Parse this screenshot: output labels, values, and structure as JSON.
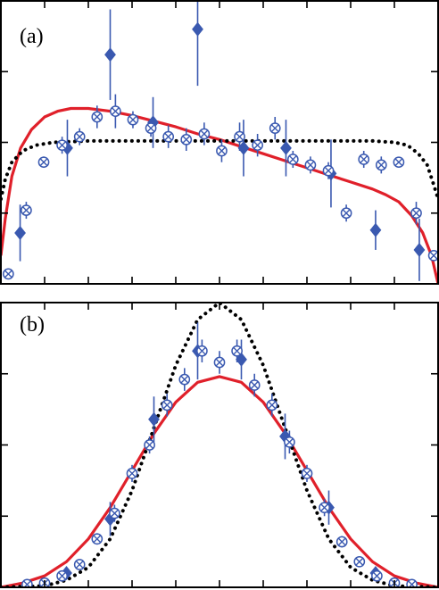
{
  "colors": {
    "frame": "#000000",
    "fit_curve": "#e0202a",
    "dotted_curve": "#000000",
    "diamond": "#3a59b0",
    "cross_circle": "#3a59b0",
    "errorbar": "#3a59b0"
  },
  "chart_data": [
    {
      "type": "scatter",
      "panel_label": "(a)",
      "xlim": [
        0,
        1
      ],
      "ylim": [
        0,
        1
      ],
      "grid": false,
      "legend": "none",
      "tick_labels": "none",
      "series": [
        {
          "marker": "diamond",
          "points": [
            {
              "x": 0.044,
              "y": 0.18,
              "err": 0.1
            },
            {
              "x": 0.152,
              "y": 0.48,
              "err": 0.1
            },
            {
              "x": 0.25,
              "y": 0.81,
              "err": 0.16
            },
            {
              "x": 0.348,
              "y": 0.57,
              "err": 0.09
            },
            {
              "x": 0.45,
              "y": 0.9,
              "err": 0.2
            },
            {
              "x": 0.555,
              "y": 0.48,
              "err": 0.1
            },
            {
              "x": 0.652,
              "y": 0.48,
              "err": 0.1
            },
            {
              "x": 0.755,
              "y": 0.39,
              "err": 0.12
            },
            {
              "x": 0.857,
              "y": 0.19,
              "err": 0.07
            },
            {
              "x": 0.957,
              "y": 0.12,
              "err": 0.11
            }
          ]
        },
        {
          "marker": "cross-circle",
          "points": [
            {
              "x": 0.017,
              "y": 0.035,
              "err": 0.0
            },
            {
              "x": 0.058,
              "y": 0.26,
              "err": 0.03
            },
            {
              "x": 0.098,
              "y": 0.43,
              "err": 0.02
            },
            {
              "x": 0.14,
              "y": 0.49,
              "err": 0.03
            },
            {
              "x": 0.18,
              "y": 0.52,
              "err": 0.03
            },
            {
              "x": 0.22,
              "y": 0.59,
              "err": 0.04
            },
            {
              "x": 0.262,
              "y": 0.61,
              "err": 0.06
            },
            {
              "x": 0.302,
              "y": 0.58,
              "err": 0.03
            },
            {
              "x": 0.343,
              "y": 0.55,
              "err": 0.03
            },
            {
              "x": 0.383,
              "y": 0.52,
              "err": 0.04
            },
            {
              "x": 0.424,
              "y": 0.51,
              "err": 0.04
            },
            {
              "x": 0.465,
              "y": 0.53,
              "err": 0.04
            },
            {
              "x": 0.505,
              "y": 0.47,
              "err": 0.04
            },
            {
              "x": 0.546,
              "y": 0.52,
              "err": 0.05
            },
            {
              "x": 0.587,
              "y": 0.49,
              "err": 0.04
            },
            {
              "x": 0.627,
              "y": 0.55,
              "err": 0.04
            },
            {
              "x": 0.668,
              "y": 0.44,
              "err": 0.03
            },
            {
              "x": 0.708,
              "y": 0.42,
              "err": 0.03
            },
            {
              "x": 0.749,
              "y": 0.4,
              "err": 0.03
            },
            {
              "x": 0.79,
              "y": 0.25,
              "err": 0.03
            },
            {
              "x": 0.83,
              "y": 0.44,
              "err": 0.03
            },
            {
              "x": 0.87,
              "y": 0.42,
              "err": 0.03
            },
            {
              "x": 0.91,
              "y": 0.43,
              "err": 0.0
            },
            {
              "x": 0.95,
              "y": 0.25,
              "err": 0.04
            },
            {
              "x": 0.99,
              "y": 0.1,
              "err": 0.0
            }
          ]
        }
      ],
      "curves": [
        {
          "style": "solid",
          "points": [
            [
              0.0,
              0.1
            ],
            [
              0.01,
              0.23
            ],
            [
              0.025,
              0.38
            ],
            [
              0.045,
              0.48
            ],
            [
              0.07,
              0.545
            ],
            [
              0.1,
              0.59
            ],
            [
              0.13,
              0.61
            ],
            [
              0.16,
              0.62
            ],
            [
              0.2,
              0.62
            ],
            [
              0.25,
              0.61
            ],
            [
              0.3,
              0.595
            ],
            [
              0.35,
              0.575
            ],
            [
              0.4,
              0.555
            ],
            [
              0.45,
              0.53
            ],
            [
              0.5,
              0.51
            ],
            [
              0.55,
              0.485
            ],
            [
              0.6,
              0.46
            ],
            [
              0.65,
              0.435
            ],
            [
              0.7,
              0.41
            ],
            [
              0.75,
              0.385
            ],
            [
              0.8,
              0.36
            ],
            [
              0.85,
              0.335
            ],
            [
              0.88,
              0.315
            ],
            [
              0.91,
              0.29
            ],
            [
              0.94,
              0.24
            ],
            [
              0.965,
              0.18
            ],
            [
              0.985,
              0.1
            ],
            [
              1.0,
              0.0
            ]
          ]
        },
        {
          "style": "dotted",
          "points": [
            [
              0.0,
              0.3
            ],
            [
              0.01,
              0.37
            ],
            [
              0.025,
              0.43
            ],
            [
              0.05,
              0.47
            ],
            [
              0.08,
              0.49
            ],
            [
              0.12,
              0.5
            ],
            [
              0.2,
              0.505
            ],
            [
              0.3,
              0.505
            ],
            [
              0.5,
              0.505
            ],
            [
              0.7,
              0.505
            ],
            [
              0.85,
              0.505
            ],
            [
              0.9,
              0.5
            ],
            [
              0.93,
              0.49
            ],
            [
              0.955,
              0.46
            ],
            [
              0.975,
              0.42
            ],
            [
              0.99,
              0.35
            ],
            [
              1.0,
              0.3
            ]
          ]
        }
      ]
    },
    {
      "type": "scatter",
      "panel_label": "(b)",
      "xlim": [
        0,
        1
      ],
      "ylim": [
        0,
        1
      ],
      "grid": false,
      "legend": "none",
      "tick_labels": "none",
      "series": [
        {
          "marker": "diamond",
          "points": [
            {
              "x": 0.15,
              "y": 0.05,
              "err": 0.02
            },
            {
              "x": 0.25,
              "y": 0.24,
              "err": 0.06
            },
            {
              "x": 0.35,
              "y": 0.59,
              "err": 0.08
            },
            {
              "x": 0.45,
              "y": 0.83,
              "err": 0.1
            },
            {
              "x": 0.55,
              "y": 0.8,
              "err": 0.07
            },
            {
              "x": 0.65,
              "y": 0.53,
              "err": 0.08
            },
            {
              "x": 0.75,
              "y": 0.28,
              "err": 0.06
            },
            {
              "x": 0.857,
              "y": 0.05,
              "err": 0.02
            }
          ]
        },
        {
          "marker": "cross-circle",
          "points": [
            {
              "x": 0.06,
              "y": 0.01,
              "err": 0.0
            },
            {
              "x": 0.1,
              "y": 0.015,
              "err": 0.0
            },
            {
              "x": 0.14,
              "y": 0.04,
              "err": 0.0
            },
            {
              "x": 0.18,
              "y": 0.08,
              "err": 0.0
            },
            {
              "x": 0.22,
              "y": 0.17,
              "err": 0.02
            },
            {
              "x": 0.26,
              "y": 0.26,
              "err": 0.03
            },
            {
              "x": 0.3,
              "y": 0.4,
              "err": 0.03
            },
            {
              "x": 0.34,
              "y": 0.5,
              "err": 0.03
            },
            {
              "x": 0.38,
              "y": 0.64,
              "err": 0.04
            },
            {
              "x": 0.42,
              "y": 0.73,
              "err": 0.04
            },
            {
              "x": 0.46,
              "y": 0.83,
              "err": 0.04
            },
            {
              "x": 0.5,
              "y": 0.79,
              "err": 0.04
            },
            {
              "x": 0.54,
              "y": 0.83,
              "err": 0.04
            },
            {
              "x": 0.58,
              "y": 0.71,
              "err": 0.04
            },
            {
              "x": 0.62,
              "y": 0.64,
              "err": 0.04
            },
            {
              "x": 0.66,
              "y": 0.51,
              "err": 0.04
            },
            {
              "x": 0.7,
              "y": 0.4,
              "err": 0.03
            },
            {
              "x": 0.74,
              "y": 0.28,
              "err": 0.03
            },
            {
              "x": 0.78,
              "y": 0.16,
              "err": 0.02
            },
            {
              "x": 0.82,
              "y": 0.09,
              "err": 0.0
            },
            {
              "x": 0.86,
              "y": 0.04,
              "err": 0.0
            },
            {
              "x": 0.9,
              "y": 0.015,
              "err": 0.0
            },
            {
              "x": 0.94,
              "y": 0.01,
              "err": 0.0
            }
          ]
        }
      ],
      "curves": [
        {
          "style": "solid",
          "points": [
            [
              0.0,
              0.0
            ],
            [
              0.05,
              0.015
            ],
            [
              0.1,
              0.04
            ],
            [
              0.15,
              0.09
            ],
            [
              0.2,
              0.17
            ],
            [
              0.25,
              0.28
            ],
            [
              0.3,
              0.41
            ],
            [
              0.35,
              0.54
            ],
            [
              0.4,
              0.65
            ],
            [
              0.45,
              0.72
            ],
            [
              0.5,
              0.74
            ],
            [
              0.55,
              0.72
            ],
            [
              0.6,
              0.65
            ],
            [
              0.65,
              0.54
            ],
            [
              0.7,
              0.41
            ],
            [
              0.75,
              0.28
            ],
            [
              0.8,
              0.17
            ],
            [
              0.85,
              0.09
            ],
            [
              0.9,
              0.04
            ],
            [
              0.95,
              0.015
            ],
            [
              1.0,
              0.0
            ]
          ]
        },
        {
          "style": "dotted",
          "points": [
            [
              0.0,
              0.0
            ],
            [
              0.1,
              0.005
            ],
            [
              0.15,
              0.025
            ],
            [
              0.2,
              0.07
            ],
            [
              0.25,
              0.17
            ],
            [
              0.3,
              0.34
            ],
            [
              0.35,
              0.56
            ],
            [
              0.4,
              0.78
            ],
            [
              0.45,
              0.94
            ],
            [
              0.5,
              1.0
            ],
            [
              0.55,
              0.94
            ],
            [
              0.6,
              0.78
            ],
            [
              0.65,
              0.56
            ],
            [
              0.7,
              0.34
            ],
            [
              0.75,
              0.17
            ],
            [
              0.8,
              0.07
            ],
            [
              0.85,
              0.025
            ],
            [
              0.9,
              0.005
            ],
            [
              1.0,
              0.0
            ]
          ]
        }
      ]
    }
  ]
}
